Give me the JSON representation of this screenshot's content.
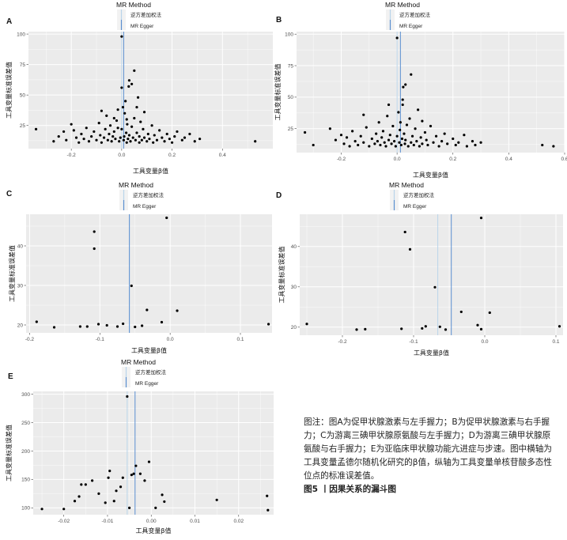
{
  "legend": {
    "title": "MR Method",
    "items": [
      "逆方差加权法",
      "MR Egger"
    ]
  },
  "colors": {
    "ivw": "#b9d4ea",
    "egger": "#5b8fd0",
    "panel_bg": "#ebebeb",
    "grid": "#ffffff",
    "point": "#000000"
  },
  "caption": {
    "body": "图注：图A为促甲状腺激素与左手握力；B为促甲状腺激素与右手握力；C为游离三碘甲状腺原氨酸与左手握力；D为游离三碘甲状腺原氨酸与右手握力；E为亚临床甲状腺功能亢进症与步速。图中横轴为工具变量孟德尔随机化研究的β值，纵轴为工具变量单核苷酸多态性位点的标准误差值。",
    "figure_title": "图5 丨因果关系的漏斗图"
  },
  "chart_data": [
    {
      "panel": "A",
      "type": "scatter",
      "xlabel": "工具变量β值",
      "ylabel": "工具变量标准误差值",
      "xlim": [
        -0.37,
        0.6
      ],
      "ylim": [
        6,
        102
      ],
      "xticks": [
        -0.2,
        0.0,
        0.2,
        0.4
      ],
      "xticklabels": [
        "-0.2",
        "0.0",
        "0.2",
        "0.4"
      ],
      "yticks": [
        25,
        50,
        75,
        100
      ],
      "yticklabels": [
        "25",
        "50",
        "75",
        "100"
      ],
      "ivw_x": 0.0,
      "egger_x": 0.008,
      "points": [
        [
          -0.34,
          22
        ],
        [
          -0.27,
          12
        ],
        [
          -0.25,
          16
        ],
        [
          -0.23,
          20
        ],
        [
          -0.22,
          13
        ],
        [
          -0.2,
          26
        ],
        [
          -0.19,
          21
        ],
        [
          -0.18,
          15
        ],
        [
          -0.17,
          11
        ],
        [
          -0.16,
          18
        ],
        [
          -0.15,
          14
        ],
        [
          -0.14,
          23
        ],
        [
          -0.13,
          12
        ],
        [
          -0.12,
          16
        ],
        [
          -0.11,
          20
        ],
        [
          -0.1,
          13
        ],
        [
          -0.09,
          27
        ],
        [
          -0.085,
          17
        ],
        [
          -0.08,
          11
        ],
        [
          -0.07,
          15
        ],
        [
          -0.065,
          22
        ],
        [
          -0.06,
          33
        ],
        [
          -0.055,
          13
        ],
        [
          -0.05,
          18
        ],
        [
          -0.045,
          25
        ],
        [
          -0.04,
          12
        ],
        [
          -0.035,
          16
        ],
        [
          -0.03,
          20
        ],
        [
          -0.025,
          14
        ],
        [
          -0.02,
          29
        ],
        [
          -0.015,
          38
        ],
        [
          -0.01,
          12
        ],
        [
          -0.005,
          15
        ],
        [
          0.0,
          98
        ],
        [
          0.0,
          22
        ],
        [
          0.005,
          40
        ],
        [
          0.008,
          13
        ],
        [
          0.01,
          16
        ],
        [
          0.012,
          35
        ],
        [
          0.015,
          45
        ],
        [
          0.018,
          19
        ],
        [
          0.02,
          11
        ],
        [
          0.022,
          26
        ],
        [
          0.025,
          14
        ],
        [
          0.028,
          57
        ],
        [
          0.03,
          62
        ],
        [
          0.03,
          17
        ],
        [
          0.035,
          12
        ],
        [
          0.04,
          24
        ],
        [
          0.04,
          59
        ],
        [
          0.045,
          15
        ],
        [
          0.05,
          31
        ],
        [
          0.05,
          70
        ],
        [
          0.055,
          13
        ],
        [
          0.06,
          19
        ],
        [
          0.065,
          48
        ],
        [
          0.07,
          11
        ],
        [
          0.07,
          16
        ],
        [
          0.075,
          28
        ],
        [
          0.08,
          13
        ],
        [
          0.085,
          22
        ],
        [
          0.09,
          15
        ],
        [
          0.09,
          36
        ],
        [
          0.1,
          12
        ],
        [
          0.105,
          18
        ],
        [
          0.11,
          14
        ],
        [
          0.12,
          25
        ],
        [
          0.125,
          11
        ],
        [
          0.13,
          17
        ],
        [
          0.14,
          13
        ],
        [
          0.15,
          21
        ],
        [
          0.16,
          15
        ],
        [
          0.17,
          12
        ],
        [
          0.18,
          18
        ],
        [
          0.19,
          14
        ],
        [
          0.2,
          11
        ],
        [
          0.21,
          16
        ],
        [
          0.22,
          20
        ],
        [
          0.24,
          13
        ],
        [
          0.25,
          15
        ],
        [
          0.27,
          18
        ],
        [
          0.29,
          12
        ],
        [
          0.31,
          14
        ],
        [
          0.53,
          12
        ],
        [
          -0.08,
          37
        ],
        [
          -0.03,
          31
        ],
        [
          0.0,
          56
        ],
        [
          -0.015,
          23
        ],
        [
          0.06,
          40
        ],
        [
          0.02,
          30
        ]
      ]
    },
    {
      "panel": "B",
      "type": "scatter",
      "xlabel": "工具变量β值",
      "ylabel": "工具变量标准误差值",
      "xlim": [
        -0.36,
        0.6
      ],
      "ylim": [
        6,
        102
      ],
      "xticks": [
        -0.2,
        0.0,
        0.2,
        0.4,
        0.6
      ],
      "xticklabels": [
        "-0.2",
        "0.0",
        "0.2",
        "0.4",
        "0.6"
      ],
      "yticks": [
        25,
        50,
        75,
        100
      ],
      "yticklabels": [
        "25",
        "50",
        "75",
        "100"
      ],
      "ivw_x": 0.0,
      "egger_x": 0.012,
      "points": [
        [
          -0.33,
          22
        ],
        [
          -0.3,
          12
        ],
        [
          -0.24,
          25
        ],
        [
          -0.22,
          16
        ],
        [
          -0.2,
          20
        ],
        [
          -0.19,
          13
        ],
        [
          -0.18,
          18
        ],
        [
          -0.17,
          11
        ],
        [
          -0.16,
          23
        ],
        [
          -0.15,
          15
        ],
        [
          -0.14,
          12
        ],
        [
          -0.13,
          19
        ],
        [
          -0.12,
          14
        ],
        [
          -0.11,
          26
        ],
        [
          -0.1,
          11
        ],
        [
          -0.09,
          17
        ],
        [
          -0.08,
          13
        ],
        [
          -0.075,
          21
        ],
        [
          -0.07,
          15
        ],
        [
          -0.065,
          30
        ],
        [
          -0.06,
          12
        ],
        [
          -0.055,
          18
        ],
        [
          -0.05,
          23
        ],
        [
          -0.045,
          14
        ],
        [
          -0.04,
          11
        ],
        [
          -0.035,
          35
        ],
        [
          -0.03,
          16
        ],
        [
          -0.025,
          20
        ],
        [
          -0.02,
          13
        ],
        [
          -0.015,
          27
        ],
        [
          -0.01,
          15
        ],
        [
          -0.005,
          11
        ],
        [
          0.0,
          97
        ],
        [
          0.0,
          19
        ],
        [
          0.005,
          38
        ],
        [
          0.008,
          14
        ],
        [
          0.01,
          24
        ],
        [
          0.012,
          30
        ],
        [
          0.015,
          12
        ],
        [
          0.018,
          17
        ],
        [
          0.02,
          44
        ],
        [
          0.022,
          58
        ],
        [
          0.025,
          21
        ],
        [
          0.028,
          13
        ],
        [
          0.03,
          60
        ],
        [
          0.03,
          16
        ],
        [
          0.035,
          28
        ],
        [
          0.04,
          11
        ],
        [
          0.045,
          33
        ],
        [
          0.05,
          14
        ],
        [
          0.05,
          68
        ],
        [
          0.055,
          19
        ],
        [
          0.06,
          12
        ],
        [
          0.065,
          25
        ],
        [
          0.07,
          15
        ],
        [
          0.075,
          40
        ],
        [
          0.08,
          11
        ],
        [
          0.085,
          18
        ],
        [
          0.09,
          13
        ],
        [
          0.1,
          22
        ],
        [
          0.105,
          16
        ],
        [
          0.11,
          12
        ],
        [
          0.12,
          27
        ],
        [
          0.13,
          14
        ],
        [
          0.14,
          19
        ],
        [
          0.15,
          11
        ],
        [
          0.16,
          15
        ],
        [
          0.17,
          21
        ],
        [
          0.18,
          13
        ],
        [
          0.2,
          17
        ],
        [
          0.21,
          12
        ],
        [
          0.22,
          14
        ],
        [
          0.24,
          20
        ],
        [
          0.25,
          11
        ],
        [
          0.27,
          15
        ],
        [
          0.28,
          12
        ],
        [
          0.3,
          14
        ],
        [
          0.52,
          12
        ],
        [
          0.56,
          11
        ],
        [
          -0.12,
          36
        ],
        [
          -0.03,
          44
        ],
        [
          0.02,
          48
        ],
        [
          0.09,
          31
        ]
      ]
    },
    {
      "panel": "C",
      "type": "scatter",
      "xlabel": "工具变量β值",
      "ylabel": "工具变量标准误差值",
      "xlim": [
        -0.205,
        0.145
      ],
      "ylim": [
        18,
        48
      ],
      "xticks": [
        -0.2,
        -0.1,
        0.0,
        0.1
      ],
      "xticklabels": [
        "-0.2",
        "-0.1",
        "0.0",
        "0.1"
      ],
      "yticks": [
        20,
        30,
        40
      ],
      "yticklabels": [
        "20",
        "30",
        "40"
      ],
      "ivw_x": -0.058,
      "egger_x": -0.058,
      "points": [
        [
          -0.19,
          20.8
        ],
        [
          -0.165,
          19.4
        ],
        [
          -0.128,
          19.6
        ],
        [
          -0.118,
          19.6
        ],
        [
          -0.108,
          43.6
        ],
        [
          -0.108,
          39.3
        ],
        [
          -0.102,
          20.2
        ],
        [
          -0.09,
          19.9
        ],
        [
          -0.075,
          19.6
        ],
        [
          -0.067,
          20.3
        ],
        [
          -0.055,
          29.9
        ],
        [
          -0.05,
          19.5
        ],
        [
          -0.04,
          19.8
        ],
        [
          -0.033,
          23.8
        ],
        [
          -0.012,
          20.7
        ],
        [
          -0.005,
          47.1
        ],
        [
          0.01,
          23.6
        ],
        [
          0.14,
          20.2
        ]
      ]
    },
    {
      "panel": "D",
      "type": "scatter",
      "xlabel": "工具变量β值",
      "ylabel": "工具变量标准误差值",
      "xlim": [
        -0.26,
        0.11
      ],
      "ylim": [
        18,
        48
      ],
      "xticks": [
        -0.2,
        -0.1,
        0.0,
        0.1
      ],
      "xticklabels": [
        "-0.2",
        "-0.1",
        "0.0",
        "0.1"
      ],
      "yticks": [
        20,
        30,
        40
      ],
      "yticklabels": [
        "20",
        "30",
        "40"
      ],
      "ivw_x": -0.066,
      "egger_x": -0.047,
      "points": [
        [
          -0.25,
          20.8
        ],
        [
          -0.18,
          19.4
        ],
        [
          -0.168,
          19.5
        ],
        [
          -0.117,
          19.6
        ],
        [
          -0.112,
          43.6
        ],
        [
          -0.105,
          39.3
        ],
        [
          -0.088,
          19.7
        ],
        [
          -0.083,
          20.2
        ],
        [
          -0.07,
          29.9
        ],
        [
          -0.063,
          20.1
        ],
        [
          -0.055,
          19.4
        ],
        [
          -0.033,
          23.8
        ],
        [
          -0.01,
          20.5
        ],
        [
          -0.005,
          19.5
        ],
        [
          -0.005,
          47.1
        ],
        [
          0.007,
          23.6
        ],
        [
          0.105,
          20.2
        ]
      ]
    },
    {
      "panel": "E",
      "type": "scatter",
      "xlabel": "工具变量β值",
      "ylabel": "工具变量标准误差值",
      "xlim": [
        -0.027,
        0.028
      ],
      "ylim": [
        88,
        305
      ],
      "xticks": [
        -0.02,
        -0.01,
        0.0,
        0.01,
        0.02
      ],
      "xticklabels": [
        "-0.02",
        "-0.01",
        "0.00",
        "0.01",
        "0.02"
      ],
      "yticks": [
        100,
        150,
        200,
        250,
        300
      ],
      "yticklabels": [
        "100",
        "150",
        "200",
        "250",
        "300"
      ],
      "ivw_x": -0.0055,
      "egger_x": -0.0037,
      "points": [
        [
          -0.025,
          98
        ],
        [
          -0.02,
          98
        ],
        [
          -0.0175,
          112
        ],
        [
          -0.0165,
          120
        ],
        [
          -0.016,
          141
        ],
        [
          -0.015,
          141
        ],
        [
          -0.0135,
          148
        ],
        [
          -0.012,
          125
        ],
        [
          -0.0105,
          109
        ],
        [
          -0.0098,
          153
        ],
        [
          -0.0095,
          165
        ],
        [
          -0.0085,
          112
        ],
        [
          -0.008,
          130
        ],
        [
          -0.007,
          137
        ],
        [
          -0.0065,
          153
        ],
        [
          -0.0055,
          296
        ],
        [
          -0.005,
          100
        ],
        [
          -0.0045,
          158
        ],
        [
          -0.004,
          160
        ],
        [
          -0.0035,
          174
        ],
        [
          -0.0025,
          160
        ],
        [
          -0.0015,
          148
        ],
        [
          -0.0005,
          181
        ],
        [
          0.001,
          100
        ],
        [
          0.0025,
          123
        ],
        [
          0.003,
          111
        ],
        [
          0.015,
          114
        ],
        [
          0.0265,
          121
        ],
        [
          0.0267,
          96
        ]
      ]
    }
  ]
}
